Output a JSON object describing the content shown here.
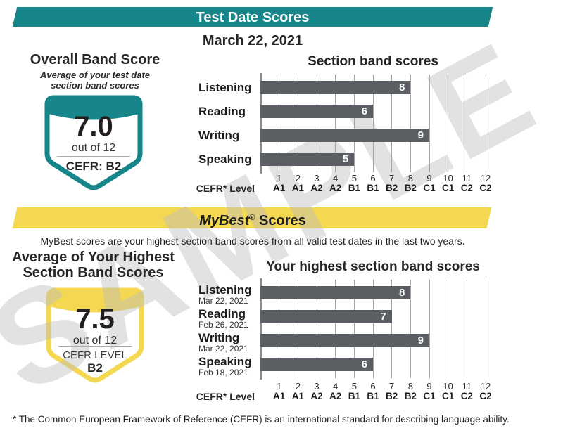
{
  "watermark": "SAMPLE",
  "header": {
    "banner": "Test Date Scores",
    "date": "March 22, 2021"
  },
  "overall": {
    "title": "Overall Band Score",
    "subtitle": [
      "Average of your test date",
      "section band scores"
    ],
    "score": "7.0",
    "out_of": "out of 12",
    "cefr_label": "CEFR: B2"
  },
  "mybest": {
    "banner_italic": "MyBest",
    "banner_reg": "®",
    "banner_rest": " Scores",
    "description": "MyBest scores are your highest section band scores from all valid test dates in the last two years.",
    "left_title": [
      "Average of Your Highest",
      "Section Band Scores"
    ],
    "score": "7.5",
    "out_of": "out of 12",
    "cefr_label": "CEFR LEVEL",
    "cefr_value": "B2"
  },
  "footnote": "* The Common European Framework of Reference (CEFR) is an international standard for describing language ability.",
  "colors": {
    "teal": "#17868B",
    "yellow": "#F5D851",
    "bar_gray": "#5B5E63"
  },
  "chart_data": [
    {
      "type": "bar",
      "orientation": "horizontal",
      "title": "Section band scores",
      "categories": [
        "Listening",
        "Reading",
        "Writing",
        "Speaking"
      ],
      "values": [
        8,
        6,
        9,
        5
      ],
      "xlabel": "CEFR* Level",
      "xlim": [
        0,
        12
      ],
      "x_ticks": [
        1,
        2,
        3,
        4,
        5,
        6,
        7,
        8,
        9,
        10,
        11,
        12
      ],
      "cefr_levels": [
        "A1",
        "A1",
        "A2",
        "A2",
        "B1",
        "B1",
        "B2",
        "B2",
        "C1",
        "C1",
        "C2",
        "C2"
      ],
      "grid": true,
      "bar_color": "#5B5E63"
    },
    {
      "type": "bar",
      "orientation": "horizontal",
      "title": "Your highest section band scores",
      "categories": [
        "Listening",
        "Reading",
        "Writing",
        "Speaking"
      ],
      "dates": [
        "Mar 22, 2021",
        "Feb 26, 2021",
        "Mar 22, 2021",
        "Feb 18, 2021"
      ],
      "values": [
        8,
        7,
        9,
        6
      ],
      "xlabel": "CEFR* Level",
      "xlim": [
        0,
        12
      ],
      "x_ticks": [
        1,
        2,
        3,
        4,
        5,
        6,
        7,
        8,
        9,
        10,
        11,
        12
      ],
      "cefr_levels": [
        "A1",
        "A1",
        "A2",
        "A2",
        "B1",
        "B1",
        "B2",
        "B2",
        "C1",
        "C1",
        "C2",
        "C2"
      ],
      "grid": true,
      "bar_color": "#5B5E63"
    }
  ]
}
